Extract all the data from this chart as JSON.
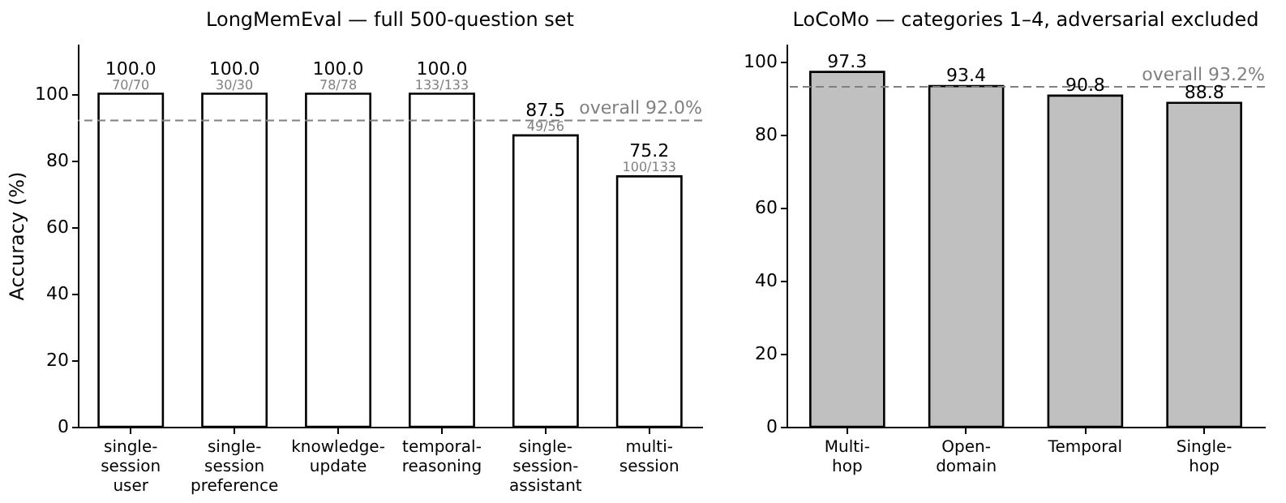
{
  "chart_data": [
    {
      "type": "bar",
      "title": "LongMemEval — full 500-question set",
      "ylabel": "Accuracy (%)",
      "categories": [
        "single-session\nuser",
        "single-session\npreference",
        "knowledge-\nupdate",
        "temporal-\nreasoning",
        "single-session-\nassistant",
        "multi-\nsession"
      ],
      "values": [
        100.0,
        100.0,
        100.0,
        100.0,
        87.5,
        75.2
      ],
      "color": "#ffffff",
      "value_labels": [
        "100.0",
        "100.0",
        "100.0",
        "100.0",
        "87.5",
        "75.2"
      ],
      "ylim": [
        0,
        115
      ],
      "yticks": [
        0,
        20,
        40,
        60,
        80,
        100
      ],
      "grid": false,
      "ref_lines": [
        {
          "axis": "y",
          "value": 92,
          "label": "overall 92.0%",
          "color": "#808080",
          "line_style": "dashed"
        }
      ],
      "annotations": [
        {
          "text": "70/70",
          "x": "single-session\nuser",
          "y": 100
        },
        {
          "text": "30/30",
          "x": "single-session\npreference",
          "y": 100
        },
        {
          "text": "78/78",
          "x": "knowledge-\nupdate",
          "y": 100
        },
        {
          "text": "133/133",
          "x": "temporal-\nreasoning",
          "y": 100
        },
        {
          "text": "49/56",
          "x": "single-session-\nassistant",
          "y": 87.5
        },
        {
          "text": "100/133",
          "x": "multi-\nsession",
          "y": 75.2
        }
      ]
    },
    {
      "type": "bar",
      "title": "LoCoMo — categories 1–4, adversarial excluded",
      "categories": [
        "Multi-hop",
        "Open-domain",
        "Temporal",
        "Single-hop"
      ],
      "values": [
        97.3,
        93.4,
        90.8,
        88.8
      ],
      "color": "#c0c0c0",
      "data_labels": true,
      "ylim": [
        0,
        105
      ],
      "yticks": [
        0,
        20,
        40,
        60,
        80,
        100
      ],
      "grid": false,
      "ref_lines": [
        {
          "axis": "y",
          "value": 93.2,
          "label": "overall 93.2%",
          "color": "#808080",
          "line_style": "dashed"
        }
      ]
    }
  ]
}
